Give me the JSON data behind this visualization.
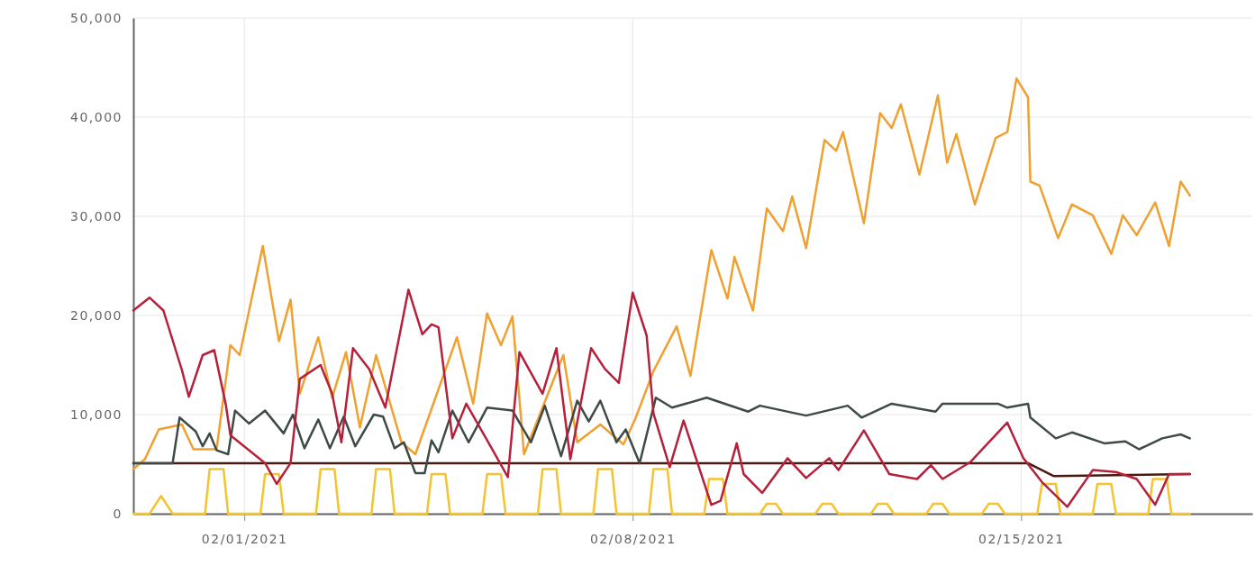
{
  "chart_data": {
    "type": "line",
    "grid": true,
    "marker": "none",
    "line_style": "solid",
    "xlim": [
      "2021-01-30T00:00",
      "2021-02-19T04:00"
    ],
    "xticks": [
      {
        "value": "2021-02-01T00:00",
        "label": "02/01/2021"
      },
      {
        "value": "2021-02-08T00:00",
        "label": "02/08/2021"
      },
      {
        "value": "2021-02-15T00:00",
        "label": "02/15/2021"
      }
    ],
    "ylim": [
      0,
      50000
    ],
    "yticks": [
      0,
      {
        "value": 10000,
        "label": "10,000"
      },
      {
        "value": 20000,
        "label": "20,000"
      },
      {
        "value": 30000,
        "label": "30,000"
      },
      {
        "value": 40000,
        "label": "40,000"
      },
      {
        "value": 50000,
        "label": "50,000"
      }
    ],
    "series": [
      {
        "color": "#f4c430",
        "x": [
          "2021-01-30T00:00",
          "2021-01-30T07:00",
          "2021-01-30T12:00",
          "2021-01-30T17:00",
          "2021-01-31T07:00",
          "2021-01-31T09:00",
          "2021-01-31T15:00",
          "2021-01-31T17:00",
          "2021-02-01T07:00",
          "2021-02-01T09:00",
          "2021-02-01T15:00",
          "2021-02-01T17:00",
          "2021-02-02T07:00",
          "2021-02-02T09:00",
          "2021-02-02T15:00",
          "2021-02-02T17:00",
          "2021-02-03T07:00",
          "2021-02-03T09:00",
          "2021-02-03T15:00",
          "2021-02-03T17:00",
          "2021-02-04T07:00",
          "2021-02-04T09:00",
          "2021-02-04T15:00",
          "2021-02-04T17:00",
          "2021-02-05T07:00",
          "2021-02-05T09:00",
          "2021-02-05T15:00",
          "2021-02-05T17:00",
          "2021-02-06T07:00",
          "2021-02-06T09:00",
          "2021-02-06T15:00",
          "2021-02-06T17:00",
          "2021-02-07T07:00",
          "2021-02-07T09:00",
          "2021-02-07T15:00",
          "2021-02-07T17:00",
          "2021-02-08T07:00",
          "2021-02-08T09:00",
          "2021-02-08T15:00",
          "2021-02-08T17:00",
          "2021-02-09T07:00",
          "2021-02-09T09:00",
          "2021-02-09T15:00",
          "2021-02-09T17:00",
          "2021-02-10T07:00",
          "2021-02-10T10:00",
          "2021-02-10T14:00",
          "2021-02-10T17:00",
          "2021-02-11T07:00",
          "2021-02-11T10:00",
          "2021-02-11T14:00",
          "2021-02-11T17:00",
          "2021-02-12T07:00",
          "2021-02-12T10:00",
          "2021-02-12T14:00",
          "2021-02-12T17:00",
          "2021-02-13T07:00",
          "2021-02-13T10:00",
          "2021-02-13T14:00",
          "2021-02-13T17:00",
          "2021-02-14T07:00",
          "2021-02-14T10:00",
          "2021-02-14T14:00",
          "2021-02-14T17:00",
          "2021-02-15T07:00",
          "2021-02-15T09:00",
          "2021-02-15T15:00",
          "2021-02-15T17:00",
          "2021-02-16T07:00",
          "2021-02-16T09:00",
          "2021-02-16T15:00",
          "2021-02-16T17:00",
          "2021-02-17T07:00",
          "2021-02-17T09:00",
          "2021-02-17T15:00",
          "2021-02-17T17:00",
          "2021-02-18T01:00"
        ],
        "values": [
          0,
          0,
          1800,
          0,
          0,
          4500,
          4500,
          0,
          0,
          4000,
          4000,
          0,
          0,
          4500,
          4500,
          0,
          0,
          4500,
          4500,
          0,
          0,
          4000,
          4000,
          0,
          0,
          4000,
          4000,
          0,
          0,
          4500,
          4500,
          0,
          0,
          4500,
          4500,
          0,
          0,
          4500,
          4500,
          0,
          0,
          3500,
          3500,
          0,
          0,
          1000,
          1000,
          0,
          0,
          1000,
          1000,
          0,
          0,
          1000,
          1000,
          0,
          0,
          1000,
          1000,
          0,
          0,
          1000,
          1000,
          0,
          0,
          3000,
          3000,
          0,
          0,
          3000,
          3000,
          0,
          0,
          3500,
          3500,
          0,
          0
        ]
      },
      {
        "color": "#4a1a12",
        "x": [
          "2021-01-30T00:00",
          "2021-02-15T03:00",
          "2021-02-15T14:00",
          "2021-02-18T01:00"
        ],
        "values": [
          5100,
          5100,
          3800,
          4000
        ]
      },
      {
        "color": "#f0a030",
        "x": [
          "2021-01-30T00:00",
          "2021-01-30T05:00",
          "2021-01-30T11:00",
          "2021-01-30T21:00",
          "2021-01-31T02:00",
          "2021-01-31T12:00",
          "2021-01-31T18:00",
          "2021-01-31T22:00",
          "2021-02-01T08:00",
          "2021-02-01T15:00",
          "2021-02-01T20:00",
          "2021-02-02T00:00",
          "2021-02-02T08:00",
          "2021-02-02T14:00",
          "2021-02-02T20:00",
          "2021-02-03T02:00",
          "2021-02-03T09:00",
          "2021-02-03T20:00",
          "2021-02-04T02:00",
          "2021-02-04T20:00",
          "2021-02-05T03:00",
          "2021-02-05T09:00",
          "2021-02-05T15:00",
          "2021-02-05T20:00",
          "2021-02-06T01:00",
          "2021-02-06T18:00",
          "2021-02-07T00:00",
          "2021-02-07T10:00",
          "2021-02-07T20:00",
          "2021-02-08T01:00",
          "2021-02-08T09:00",
          "2021-02-08T19:00",
          "2021-02-09T01:00",
          "2021-02-09T10:00",
          "2021-02-09T17:00",
          "2021-02-09T20:00",
          "2021-02-10T04:00",
          "2021-02-10T10:00",
          "2021-02-10T17:00",
          "2021-02-10T21:00",
          "2021-02-11T03:00",
          "2021-02-11T11:00",
          "2021-02-11T16:00",
          "2021-02-11T19:00",
          "2021-02-12T04:00",
          "2021-02-12T11:00",
          "2021-02-12T16:00",
          "2021-02-12T20:00",
          "2021-02-13T04:00",
          "2021-02-13T12:00",
          "2021-02-13T16:00",
          "2021-02-13T20:00",
          "2021-02-14T04:00",
          "2021-02-14T13:00",
          "2021-02-14T18:00",
          "2021-02-14T22:00",
          "2021-02-15T03:00",
          "2021-02-15T04:00",
          "2021-02-15T08:00",
          "2021-02-15T16:00",
          "2021-02-15T22:00",
          "2021-02-16T07:00",
          "2021-02-16T15:00",
          "2021-02-16T20:00",
          "2021-02-17T02:00",
          "2021-02-17T10:00",
          "2021-02-17T16:00",
          "2021-02-17T21:00",
          "2021-02-18T01:00"
        ],
        "values": [
          4500,
          5500,
          8500,
          9000,
          6500,
          6500,
          17000,
          16000,
          27000,
          17400,
          21600,
          12100,
          17800,
          11700,
          16300,
          8700,
          16000,
          7200,
          6000,
          17800,
          11100,
          20200,
          17000,
          19900,
          6000,
          16000,
          7200,
          9000,
          7000,
          9500,
          14400,
          18900,
          13900,
          26600,
          21700,
          25900,
          20500,
          30800,
          28500,
          32000,
          26800,
          37700,
          36600,
          38500,
          29300,
          40400,
          38900,
          41300,
          34200,
          42200,
          35400,
          38300,
          31200,
          37900,
          38500,
          43900,
          42000,
          33500,
          33100,
          27800,
          31200,
          30100,
          26200,
          30100,
          28100,
          31400,
          27000,
          33500,
          32100
        ]
      },
      {
        "color": "#3d4a48",
        "x": [
          "2021-01-30T00:00",
          "2021-01-30T17:00",
          "2021-01-30T20:00",
          "2021-01-31T03:00",
          "2021-01-31T06:00",
          "2021-01-31T09:00",
          "2021-01-31T12:00",
          "2021-01-31T17:00",
          "2021-01-31T20:00",
          "2021-02-01T02:00",
          "2021-02-01T09:00",
          "2021-02-01T17:00",
          "2021-02-01T21:00",
          "2021-02-02T02:00",
          "2021-02-02T08:00",
          "2021-02-02T13:00",
          "2021-02-02T19:00",
          "2021-02-03T00:00",
          "2021-02-03T08:00",
          "2021-02-03T12:00",
          "2021-02-03T17:00",
          "2021-02-03T21:00",
          "2021-02-04T02:00",
          "2021-02-04T06:00",
          "2021-02-04T09:00",
          "2021-02-04T12:00",
          "2021-02-04T18:00",
          "2021-02-05T01:00",
          "2021-02-05T09:00",
          "2021-02-05T20:00",
          "2021-02-06T04:00",
          "2021-02-06T10:00",
          "2021-02-06T17:00",
          "2021-02-07T00:00",
          "2021-02-07T05:00",
          "2021-02-07T10:00",
          "2021-02-07T17:00",
          "2021-02-07T21:00",
          "2021-02-08T03:00",
          "2021-02-08T10:00",
          "2021-02-08T17:00",
          "2021-02-09T08:00",
          "2021-02-10T02:00",
          "2021-02-10T07:00",
          "2021-02-11T03:00",
          "2021-02-11T21:00",
          "2021-02-12T03:00",
          "2021-02-12T16:00",
          "2021-02-13T11:00",
          "2021-02-13T14:00",
          "2021-02-14T14:00",
          "2021-02-14T18:00",
          "2021-02-15T03:00",
          "2021-02-15T04:00",
          "2021-02-15T15:00",
          "2021-02-15T22:00",
          "2021-02-16T12:00",
          "2021-02-16T21:00",
          "2021-02-17T03:00",
          "2021-02-17T13:00",
          "2021-02-17T21:00",
          "2021-02-18T01:00"
        ],
        "values": [
          5100,
          5100,
          9700,
          8300,
          6800,
          8100,
          6400,
          6000,
          10400,
          9100,
          10400,
          8100,
          10000,
          6600,
          9500,
          6600,
          9800,
          6800,
          10000,
          9800,
          6600,
          7200,
          4100,
          4100,
          7400,
          6200,
          10400,
          7200,
          10700,
          10400,
          7200,
          10900,
          5800,
          11400,
          9300,
          11400,
          7200,
          8500,
          5100,
          11700,
          10700,
          11700,
          10300,
          10900,
          9900,
          10900,
          9700,
          11100,
          10300,
          11100,
          11100,
          10700,
          11100,
          9700,
          7600,
          8200,
          7100,
          7300,
          6500,
          7600,
          8000,
          7600
        ]
      },
      {
        "color": "#b5203a",
        "x": [
          "2021-01-30T00:00",
          "2021-01-30T07:00",
          "2021-01-30T13:00",
          "2021-01-30T21:00",
          "2021-01-31T00:00",
          "2021-01-31T06:00",
          "2021-01-31T11:00",
          "2021-01-31T16:00",
          "2021-01-31T18:00",
          "2021-02-01T09:00",
          "2021-02-01T14:00",
          "2021-02-01T20:00",
          "2021-02-02T00:00",
          "2021-02-02T09:00",
          "2021-02-02T14:00",
          "2021-02-02T18:00",
          "2021-02-02T23:00",
          "2021-02-03T06:00",
          "2021-02-03T13:00",
          "2021-02-03T23:00",
          "2021-02-04T05:00",
          "2021-02-04T09:00",
          "2021-02-04T12:00",
          "2021-02-04T18:00",
          "2021-02-05T00:00",
          "2021-02-05T11:00",
          "2021-02-05T18:00",
          "2021-02-05T23:00",
          "2021-02-06T09:00",
          "2021-02-06T15:00",
          "2021-02-06T21:00",
          "2021-02-07T06:00",
          "2021-02-07T12:00",
          "2021-02-07T18:00",
          "2021-02-08T00:00",
          "2021-02-08T06:00",
          "2021-02-08T09:00",
          "2021-02-08T16:00",
          "2021-02-08T22:00",
          "2021-02-09T10:00",
          "2021-02-09T14:00",
          "2021-02-09T21:00",
          "2021-02-10T00:00",
          "2021-02-10T08:00",
          "2021-02-10T19:00",
          "2021-02-11T03:00",
          "2021-02-11T13:00",
          "2021-02-11T17:00",
          "2021-02-12T04:00",
          "2021-02-12T15:00",
          "2021-02-13T03:00",
          "2021-02-13T09:00",
          "2021-02-13T14:00",
          "2021-02-14T02:00",
          "2021-02-14T18:00",
          "2021-02-15T01:00",
          "2021-02-15T09:00",
          "2021-02-15T20:00",
          "2021-02-16T07:00",
          "2021-02-16T17:00",
          "2021-02-17T02:00",
          "2021-02-17T10:00",
          "2021-02-17T16:00",
          "2021-02-18T01:00"
        ],
        "values": [
          20500,
          21800,
          20500,
          14500,
          11800,
          16000,
          16500,
          11000,
          7900,
          5100,
          3000,
          5100,
          13600,
          15000,
          12100,
          7200,
          16700,
          14600,
          10700,
          22600,
          18100,
          19100,
          18800,
          7600,
          11100,
          6600,
          3700,
          16300,
          12100,
          16700,
          5500,
          16700,
          14600,
          13200,
          22300,
          18000,
          10100,
          4700,
          9400,
          900,
          1300,
          7100,
          4000,
          2100,
          5600,
          3600,
          5600,
          4400,
          8400,
          4000,
          3500,
          4900,
          3500,
          5200,
          9200,
          5600,
          3200,
          700,
          4400,
          4200,
          3500,
          900,
          4000,
          4000
        ]
      }
    ]
  }
}
